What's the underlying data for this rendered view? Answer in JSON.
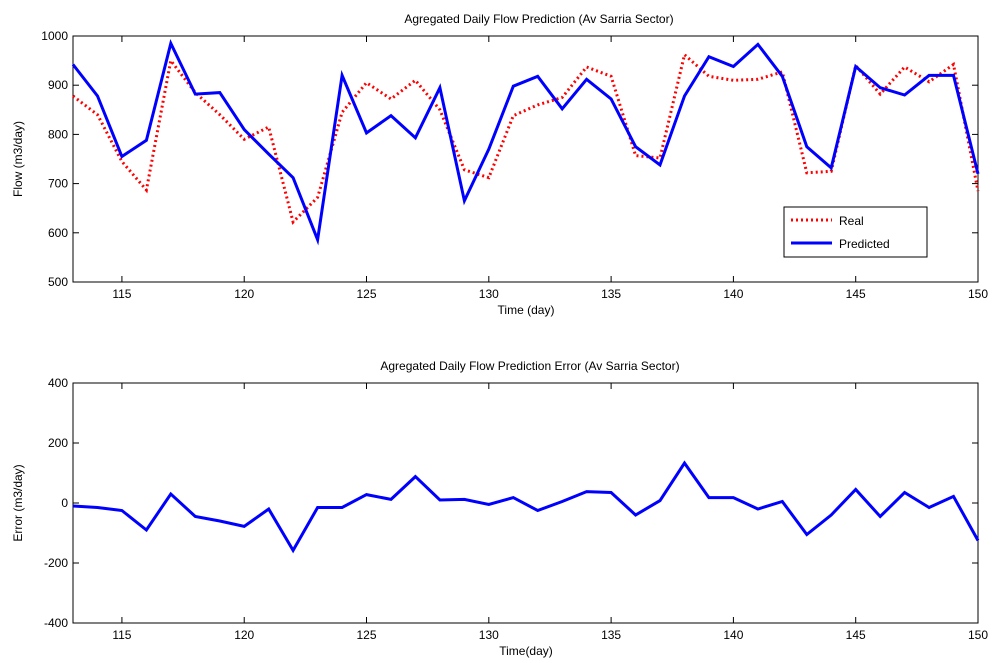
{
  "chart_data": [
    {
      "type": "line",
      "title": "Agregated Daily Flow Prediction (Av Sarria Sector)",
      "xlabel": "Time (day)",
      "ylabel": "Flow (m3/day)",
      "xlim": [
        113,
        150
      ],
      "ylim": [
        500,
        1000
      ],
      "xticks": [
        115,
        120,
        125,
        130,
        135,
        140,
        145,
        150
      ],
      "yticks": [
        500,
        600,
        700,
        800,
        900,
        1000
      ],
      "grid": false,
      "legend_position": "lower-right",
      "x": [
        113,
        114,
        115,
        116,
        117,
        118,
        119,
        120,
        121,
        122,
        123,
        124,
        125,
        126,
        127,
        128,
        129,
        130,
        131,
        132,
        133,
        134,
        135,
        136,
        137,
        138,
        139,
        140,
        141,
        142,
        143,
        144,
        145,
        146,
        147,
        148,
        149,
        150
      ],
      "series": [
        {
          "name": "Real",
          "color": "#ff0000",
          "style": "dotted",
          "values": [
            878,
            840,
            745,
            687,
            950,
            885,
            840,
            790,
            815,
            622,
            672,
            845,
            905,
            872,
            910,
            850,
            728,
            712,
            838,
            860,
            875,
            937,
            918,
            757,
            752,
            962,
            918,
            910,
            912,
            927,
            722,
            725,
            940,
            882,
            937,
            907,
            942,
            685
          ]
        },
        {
          "name": "Predicted",
          "color": "#0000ff",
          "style": "solid",
          "values": [
            942,
            878,
            755,
            788,
            985,
            882,
            885,
            810,
            760,
            712,
            586,
            920,
            803,
            838,
            793,
            895,
            665,
            770,
            898,
            918,
            852,
            912,
            872,
            775,
            738,
            878,
            958,
            938,
            983,
            918,
            775,
            732,
            938,
            895,
            880,
            920,
            920,
            720
          ]
        }
      ]
    },
    {
      "type": "line",
      "title": "Agregated Daily Flow Prediction Error (Av Sarria Sector)",
      "xlabel": "Time(day)",
      "ylabel": "Error (m3/day)",
      "xlim": [
        113,
        150
      ],
      "ylim": [
        -400,
        400
      ],
      "xticks": [
        115,
        120,
        125,
        130,
        135,
        140,
        145,
        150
      ],
      "yticks": [
        -400,
        -200,
        0,
        200,
        400
      ],
      "grid": false,
      "x": [
        113,
        114,
        115,
        116,
        117,
        118,
        119,
        120,
        121,
        122,
        123,
        124,
        125,
        126,
        127,
        128,
        129,
        130,
        131,
        132,
        133,
        134,
        135,
        136,
        137,
        138,
        139,
        140,
        141,
        142,
        143,
        144,
        145,
        146,
        147,
        148,
        149,
        150
      ],
      "series": [
        {
          "color": "#0000ff",
          "style": "solid",
          "values": [
            -10,
            -15,
            -25,
            -90,
            30,
            -45,
            -60,
            -78,
            -20,
            -158,
            -15,
            -15,
            28,
            12,
            88,
            10,
            12,
            -5,
            18,
            -25,
            5,
            38,
            35,
            -40,
            8,
            133,
            18,
            18,
            -20,
            5,
            -105,
            -40,
            45,
            -45,
            35,
            -15,
            22,
            -125
          ]
        }
      ]
    }
  ]
}
